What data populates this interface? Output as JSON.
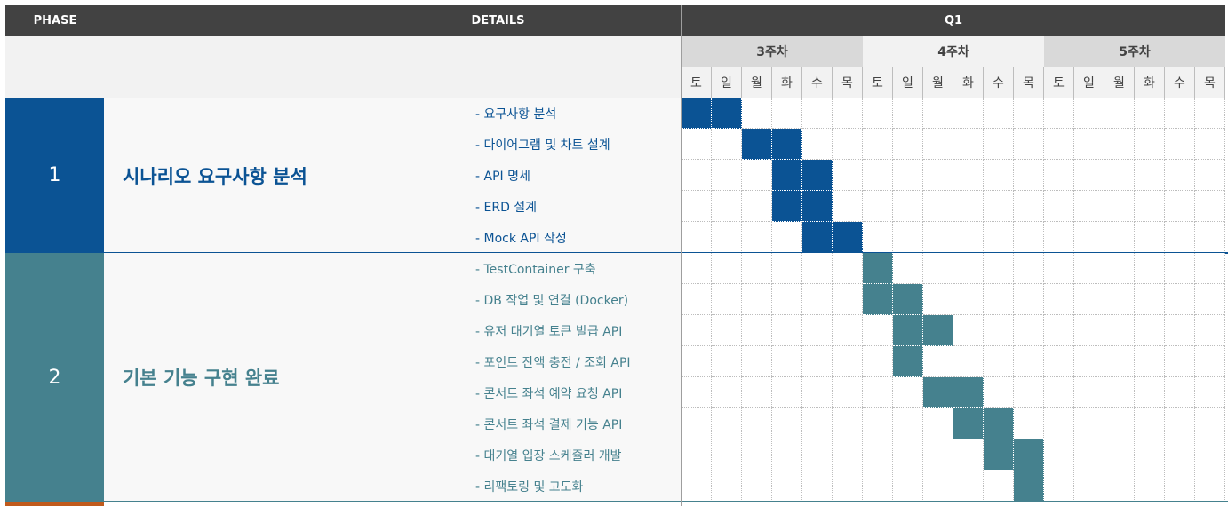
{
  "header": {
    "phase_label": "PHASE",
    "details_label": "DETAILS",
    "quarter_label": "Q1"
  },
  "weeks": [
    "3주차",
    "4주차",
    "5주차"
  ],
  "days": [
    "토",
    "일",
    "월",
    "화",
    "수",
    "목",
    "토",
    "일",
    "월",
    "화",
    "수",
    "목",
    "토",
    "일",
    "월",
    "화",
    "수",
    "목"
  ],
  "colors": {
    "header_bg": "#424242",
    "subheader_bg": "#f2f2f2",
    "week_even_bg": "#d9d9d9",
    "week_odd_bg": "#f2f2f2",
    "phase1": "#0b5394",
    "phase2": "#45818e",
    "phase3": "#c05a1c",
    "row_bg": "#f8f8f8"
  },
  "phases": [
    {
      "number": "1",
      "title": "시나리오 요구사항 분석",
      "color": "#0b5394",
      "tasks": [
        {
          "label": "- 요구사항 분석",
          "days": [
            0,
            1
          ]
        },
        {
          "label": "- 다이어그램 및 차트 설계",
          "days": [
            2,
            3
          ]
        },
        {
          "label": "- API 명세",
          "days": [
            3,
            4
          ]
        },
        {
          "label": "- ERD 설계",
          "days": [
            3,
            4
          ]
        },
        {
          "label": "- Mock API 작성",
          "days": [
            4,
            5
          ]
        }
      ]
    },
    {
      "number": "2",
      "title": "기본 기능 구현 완료",
      "color": "#45818e",
      "tasks": [
        {
          "label": "- TestContainer 구축",
          "days": [
            6
          ]
        },
        {
          "label": "- DB 작업 및 연결 (Docker)",
          "days": [
            6,
            7
          ]
        },
        {
          "label": "- 유저 대기열 토큰 발급 API",
          "days": [
            7,
            8
          ]
        },
        {
          "label": "- 포인트 잔액 충전 / 조회 API",
          "days": [
            7
          ]
        },
        {
          "label": "- 콘서트 좌석 예약 요청 API",
          "days": [
            8,
            9
          ]
        },
        {
          "label": "- 콘서트 좌석 결제 기능 API",
          "days": [
            9,
            10
          ]
        },
        {
          "label": "- 대기열 입장 스케쥴러 개발",
          "days": [
            10,
            11
          ]
        },
        {
          "label": "- 리팩토링 및 고도화",
          "days": [
            11
          ]
        }
      ]
    }
  ]
}
